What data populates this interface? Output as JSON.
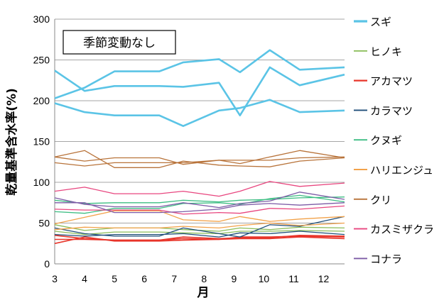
{
  "chart_data": {
    "type": "line",
    "title": "",
    "annotation": "季節変動なし",
    "xlabel": "月",
    "ylabel": "乾量基準含水率(%)",
    "xlim": [
      3,
      12.7
    ],
    "ylim": [
      0,
      300
    ],
    "x_ticks": [
      "3",
      "4",
      "5",
      "6",
      "7",
      "8",
      "9",
      "10",
      "11",
      "12"
    ],
    "y_ticks": [
      "0",
      "50",
      "100",
      "150",
      "200",
      "250",
      "300"
    ],
    "legend_position": "right",
    "series": [
      {
        "name": "スギ",
        "color": "#5bc4e6",
        "width": 2.6,
        "lines": [
          {
            "x": [
              3,
              4,
              5,
              6.5,
              7.3,
              8.5,
              9.2,
              10.2,
              11.2,
              12.7
            ],
            "y": [
              237,
              212,
              218,
              218,
              217,
              222,
              182,
              241,
              219,
              232
            ]
          },
          {
            "x": [
              3,
              4,
              5,
              6.5,
              7.3,
              8.5,
              9.2,
              10.2,
              11.2,
              12.7
            ],
            "y": [
              203,
              216,
              236,
              236,
              247,
              251,
              235,
              262,
              238,
              241
            ]
          },
          {
            "x": [
              3,
              4,
              5,
              6.5,
              7.3,
              8.5,
              9.2,
              10.2,
              11.2,
              12.7
            ],
            "y": [
              197,
              186,
              182,
              182,
              169,
              188,
              191,
              201,
              186,
              188
            ]
          }
        ]
      },
      {
        "name": "ヒノキ",
        "color": "#8cbd5a",
        "width": 1.3,
        "lines": [
          {
            "x": [
              3,
              4,
              5,
              6.5,
              7.3,
              8.5,
              9.2,
              10.2,
              11.2,
              12.7
            ],
            "y": [
              48,
              41,
              44,
              44,
              42,
              40,
              44,
              42,
              45,
              44
            ]
          },
          {
            "x": [
              3,
              4,
              5,
              6.5,
              7.3,
              8.5,
              9.2,
              10.2,
              11.2,
              12.7
            ],
            "y": [
              40,
              36,
              39,
              39,
              38,
              37,
              40,
              40,
              41,
              40
            ]
          }
        ]
      },
      {
        "name": "アカマツ",
        "color": "#e8352a",
        "width": 1.6,
        "lines": [
          {
            "x": [
              3,
              4,
              5,
              6.5,
              7.3,
              8.5,
              9.2,
              10.2,
              11.2,
              12.7
            ],
            "y": [
              25,
              33,
              28,
              28,
              29,
              30,
              33,
              33,
              34,
              33
            ]
          },
          {
            "x": [
              3,
              4,
              5,
              6.5,
              7.3,
              8.5,
              9.2,
              10.2,
              11.2,
              12.7
            ],
            "y": [
              30,
              30,
              29,
              29,
              33,
              31,
              32,
              32,
              35,
              34
            ]
          },
          {
            "x": [
              3,
              4,
              5,
              6.5,
              7.3,
              8.5,
              9.2,
              10.2,
              11.2,
              12.7
            ],
            "y": [
              35,
              31,
              29,
              29,
              31,
              30,
              31,
              31,
              33,
              31
            ]
          }
        ]
      },
      {
        "name": "カラマツ",
        "color": "#1f4e79",
        "width": 1.3,
        "lines": [
          {
            "x": [
              3,
              4,
              5,
              6.5,
              7.3,
              8.5,
              9.2,
              10.2,
              11.2,
              12.7
            ],
            "y": [
              44,
              37,
              34,
              34,
              44,
              37,
              33,
              48,
              46,
              58
            ]
          },
          {
            "x": [
              3,
              4,
              5,
              6.5,
              7.3,
              8.5,
              9.2,
              10.2,
              11.2,
              12.7
            ],
            "y": [
              36,
              34,
              36,
              36,
              37,
              33,
              38,
              37,
              40,
              36
            ]
          }
        ]
      },
      {
        "name": "クヌギ",
        "color": "#3dbd83",
        "width": 1.3,
        "lines": [
          {
            "x": [
              3,
              4,
              5,
              6.5,
              7.3,
              8.5,
              9.2,
              10.2,
              11.2,
              12.7
            ],
            "y": [
              78,
              74,
              75,
              75,
              78,
              76,
              78,
              79,
              81,
              82
            ]
          },
          {
            "x": [
              3,
              4,
              5,
              6.5,
              7.3,
              8.5,
              9.2,
              10.2,
              11.2,
              12.7
            ],
            "y": [
              64,
              62,
              68,
              68,
              74,
              75,
              73,
              80,
              84,
              76
            ]
          }
        ]
      },
      {
        "name": "ハリエンジュ",
        "color": "#f2a24a",
        "width": 1.3,
        "lines": [
          {
            "x": [
              3,
              4,
              5,
              6.5,
              7.3,
              8.5,
              9.2,
              10.2,
              11.2,
              12.7
            ],
            "y": [
              49,
              57,
              65,
              65,
              54,
              52,
              58,
              52,
              55,
              58
            ]
          },
          {
            "x": [
              3,
              4,
              5,
              6.5,
              7.3,
              8.5,
              9.2,
              10.2,
              11.2,
              12.7
            ],
            "y": [
              42,
              45,
              44,
              44,
              46,
              44,
              47,
              50,
              47,
              50
            ]
          }
        ]
      },
      {
        "name": "クリ",
        "color": "#b8733a",
        "width": 1.3,
        "lines": [
          {
            "x": [
              3,
              4,
              5,
              6.5,
              7.3,
              8.5,
              9.2,
              10.2,
              11.2,
              12.7
            ],
            "y": [
              131,
              139,
              118,
              118,
              126,
              121,
              120,
              119,
              126,
              130
            ]
          },
          {
            "x": [
              3,
              4,
              5,
              6.5,
              7.3,
              8.5,
              9.2,
              10.2,
              11.2,
              12.7
            ],
            "y": [
              124,
              120,
              124,
              124,
              124,
              127,
              123,
              131,
              139,
              130
            ]
          },
          {
            "x": [
              3,
              4,
              5,
              6.5,
              7.3,
              8.5,
              9.2,
              10.2,
              11.2,
              12.7
            ],
            "y": [
              131,
              126,
              130,
              130,
              122,
              127,
              127,
              127,
              130,
              131
            ]
          }
        ]
      },
      {
        "name": "カスミザクラ",
        "color": "#e8467f",
        "width": 1.3,
        "lines": [
          {
            "x": [
              3,
              4,
              5,
              6.5,
              7.3,
              8.5,
              9.2,
              10.2,
              11.2,
              12.7
            ],
            "y": [
              89,
              94,
              86,
              86,
              89,
              83,
              89,
              101,
              95,
              99
            ]
          },
          {
            "x": [
              3,
              4,
              5,
              6.5,
              7.3,
              8.5,
              9.2,
              10.2,
              11.2,
              12.7
            ],
            "y": [
              67,
              66,
              66,
              66,
              61,
              63,
              62,
              68,
              67,
              71
            ]
          }
        ]
      },
      {
        "name": "コナラ",
        "color": "#7d5ba6",
        "width": 1.3,
        "lines": [
          {
            "x": [
              3,
              4,
              5,
              6.5,
              7.3,
              8.5,
              9.2,
              10.2,
              11.2,
              12.7
            ],
            "y": [
              81,
              73,
              70,
              70,
              75,
              69,
              74,
              77,
              88,
              79
            ]
          },
          {
            "x": [
              3,
              4,
              5,
              6.5,
              7.3,
              8.5,
              9.2,
              10.2,
              11.2,
              12.7
            ],
            "y": [
              75,
              75,
              63,
              63,
              64,
              67,
              72,
              74,
              72,
              75
            ]
          }
        ]
      }
    ]
  }
}
